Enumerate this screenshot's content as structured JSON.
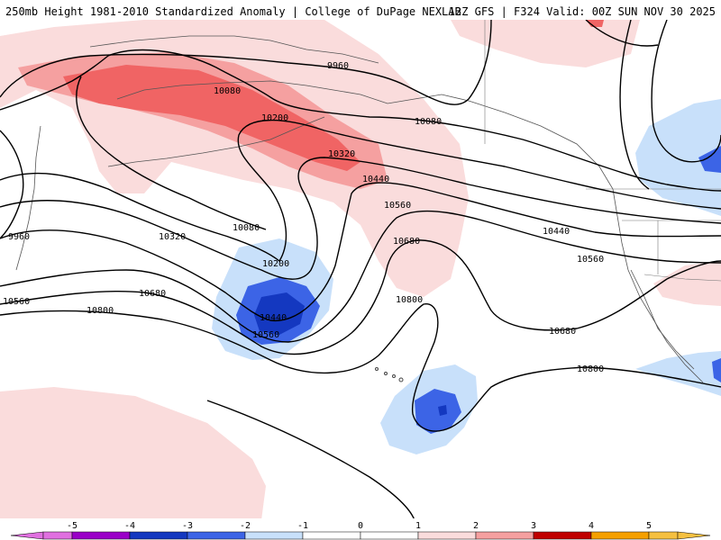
{
  "header": {
    "title_left": "250mb Height 1981-2010 Standardized Anomaly | College of DuPage NEXLAB",
    "title_right": "12Z GFS | F324 Valid: 00Z SUN NOV 30 2025"
  },
  "contours": {
    "line_color": "#000000",
    "labels": [
      {
        "id": "9960-a",
        "text": "9960"
      },
      {
        "id": "9960-b",
        "text": "9960"
      },
      {
        "id": "10080-a",
        "text": "10080"
      },
      {
        "id": "10080-b",
        "text": "10080"
      },
      {
        "id": "10080-c",
        "text": "10080"
      },
      {
        "id": "10200-a",
        "text": "10200"
      },
      {
        "id": "10200-b",
        "text": "10200"
      },
      {
        "id": "10320-a",
        "text": "10320"
      },
      {
        "id": "10320-b",
        "text": "10320"
      },
      {
        "id": "10440-a",
        "text": "10440"
      },
      {
        "id": "10440-b",
        "text": "10440"
      },
      {
        "id": "10440-c",
        "text": "10440"
      },
      {
        "id": "10560-a",
        "text": "10560"
      },
      {
        "id": "10560-b",
        "text": "10560"
      },
      {
        "id": "10560-c",
        "text": "10560"
      },
      {
        "id": "10560-d",
        "text": "10560"
      },
      {
        "id": "10680-a",
        "text": "10680"
      },
      {
        "id": "10680-b",
        "text": "10680"
      },
      {
        "id": "10680-c",
        "text": "10680"
      },
      {
        "id": "10800-a",
        "text": "10800"
      },
      {
        "id": "10800-b",
        "text": "10800"
      },
      {
        "id": "10800-c",
        "text": "10800"
      }
    ]
  },
  "anomaly_colors": {
    "neg5": "#e070e0",
    "neg4": "#9a00c8",
    "neg3": "#1438c0",
    "neg2": "#3c64e6",
    "neg1": "#c8e0fa",
    "zero": "#ffffff",
    "pos1": "#fadcdc",
    "pos2": "#f5a0a0",
    "pos3": "#f06464",
    "pos4": "#c00000",
    "pos5": "#f5a000"
  },
  "colorbar": {
    "ticks": [
      "-5",
      "-4",
      "-3",
      "-2",
      "-1",
      "0",
      "1",
      "2",
      "3",
      "4",
      "5"
    ]
  }
}
